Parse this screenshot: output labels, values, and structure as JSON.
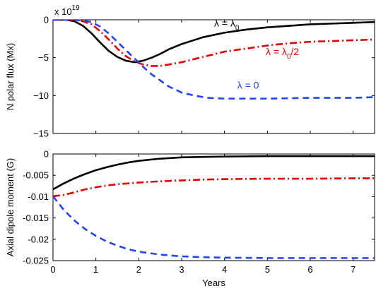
{
  "chart_data": [
    {
      "type": "line",
      "ylabel": "N polar flux (Mx)",
      "xlim": [
        0,
        7.5
      ],
      "ylim": [
        -15,
        0
      ],
      "scale_multiplier": "x 10",
      "scale_exponent": "19",
      "x_ticks": [
        0,
        1,
        2,
        3,
        4,
        5,
        6,
        7
      ],
      "y_ticks": [
        0,
        -5,
        -10,
        -15
      ],
      "y_tick_labels": [
        "0",
        "−5",
        "−10",
        "−15"
      ],
      "grid": false,
      "series": [
        {
          "id": "lambda_lambda0",
          "color": "#000000",
          "style": "solid",
          "x": [
            0,
            0.3,
            0.5,
            0.7,
            0.9,
            1.1,
            1.3,
            1.5,
            1.7,
            1.9,
            2.1,
            2.3,
            2.5,
            2.7,
            3.0,
            3.5,
            4.0,
            4.5,
            5.0,
            5.5,
            6.0,
            6.5,
            7.0,
            7.5
          ],
          "y": [
            0,
            0,
            -0.2,
            -0.8,
            -1.8,
            -3.0,
            -4.1,
            -4.9,
            -5.4,
            -5.6,
            -5.4,
            -5.0,
            -4.5,
            -3.9,
            -3.2,
            -2.3,
            -1.7,
            -1.3,
            -1.0,
            -0.8,
            -0.6,
            -0.5,
            -0.4,
            -0.3
          ]
        },
        {
          "id": "lambda_half",
          "color": "#e00000",
          "style": "dashdot",
          "x": [
            0,
            0.5,
            0.7,
            0.9,
            1.1,
            1.3,
            1.5,
            1.7,
            1.9,
            2.1,
            2.3,
            2.5,
            2.7,
            3.0,
            3.5,
            4.0,
            4.5,
            5.0,
            5.5,
            6.0,
            6.5,
            7.0,
            7.5
          ],
          "y": [
            0,
            0,
            -0.2,
            -0.6,
            -1.5,
            -2.6,
            -3.8,
            -4.8,
            -5.5,
            -5.9,
            -6.1,
            -6.1,
            -5.9,
            -5.6,
            -4.9,
            -4.2,
            -3.8,
            -3.4,
            -3.1,
            -2.9,
            -2.8,
            -2.7,
            -2.6
          ]
        },
        {
          "id": "lambda_zero",
          "color": "#2244ee",
          "style": "dashed",
          "x": [
            0,
            0.5,
            0.7,
            0.9,
            1.1,
            1.3,
            1.5,
            1.7,
            1.9,
            2.1,
            2.3,
            2.5,
            2.7,
            3.0,
            3.3,
            3.6,
            4.0,
            4.5,
            5.0,
            6.0,
            7.0,
            7.5
          ],
          "y": [
            0,
            0,
            -0.1,
            -0.3,
            -0.9,
            -1.8,
            -2.9,
            -4.0,
            -5.1,
            -6.2,
            -7.2,
            -8.0,
            -8.8,
            -9.6,
            -10.0,
            -10.3,
            -10.4,
            -10.4,
            -10.4,
            -10.3,
            -10.3,
            -10.2
          ]
        }
      ],
      "annotations": [
        {
          "id": "lambda_lambda0",
          "text": "λ = λ",
          "sub": "0",
          "color": "#000000",
          "x": 4.05,
          "y": -0.9
        },
        {
          "id": "lambda_half",
          "text": "λ = λ",
          "sub": "0",
          "tail": "/2",
          "color": "#e00000",
          "x": 5.35,
          "y": -4.65
        },
        {
          "id": "lambda_zero",
          "text": "λ = 0",
          "color": "#2244ee",
          "x": 4.55,
          "y": -9.1
        }
      ]
    },
    {
      "type": "line",
      "xlabel": "Years",
      "ylabel": "Axial dipole moment (G)",
      "xlim": [
        0,
        7.5
      ],
      "ylim": [
        -0.025,
        0
      ],
      "x_ticks": [
        0,
        1,
        2,
        3,
        4,
        5,
        6,
        7
      ],
      "y_ticks": [
        0,
        -0.005,
        -0.01,
        -0.015,
        -0.02,
        -0.025
      ],
      "y_tick_labels": [
        "0",
        "-0.005",
        "-0.01",
        "-0.015",
        "-0.02",
        "-0.025"
      ],
      "grid": false,
      "series": [
        {
          "id": "lambda_lambda0",
          "color": "#000000",
          "style": "solid",
          "x": [
            0,
            0.25,
            0.5,
            0.75,
            1.0,
            1.25,
            1.5,
            1.75,
            2.0,
            2.5,
            3.0,
            3.5,
            4.0,
            5.0,
            6.0,
            7.0,
            7.5
          ],
          "y": [
            -0.0083,
            -0.0069,
            -0.0057,
            -0.0047,
            -0.0038,
            -0.0031,
            -0.0025,
            -0.002,
            -0.0016,
            -0.0011,
            -0.0008,
            -0.0007,
            -0.0006,
            -0.0005,
            -0.0005,
            -0.0005,
            -0.0005
          ]
        },
        {
          "id": "lambda_half",
          "color": "#e00000",
          "style": "dashdot",
          "x": [
            0,
            0.25,
            0.5,
            0.75,
            1.0,
            1.25,
            1.5,
            1.75,
            2.0,
            2.5,
            3.0,
            3.5,
            4.0,
            5.0,
            6.0,
            7.0,
            7.5
          ],
          "y": [
            -0.0099,
            -0.0096,
            -0.009,
            -0.0083,
            -0.0078,
            -0.0074,
            -0.0071,
            -0.0069,
            -0.0067,
            -0.0064,
            -0.0062,
            -0.006,
            -0.0059,
            -0.0058,
            -0.0058,
            -0.0057,
            -0.0057
          ]
        },
        {
          "id": "lambda_zero",
          "color": "#2244ee",
          "style": "dashed",
          "x": [
            0,
            0.25,
            0.5,
            0.75,
            1.0,
            1.25,
            1.5,
            1.75,
            2.0,
            2.5,
            3.0,
            3.5,
            4.0,
            5.0,
            6.0,
            7.0,
            7.5
          ],
          "y": [
            -0.0099,
            -0.0131,
            -0.0156,
            -0.0176,
            -0.0192,
            -0.0205,
            -0.0215,
            -0.0223,
            -0.0229,
            -0.0236,
            -0.024,
            -0.0242,
            -0.0243,
            -0.0244,
            -0.0244,
            -0.0244,
            -0.0244
          ]
        }
      ]
    }
  ]
}
